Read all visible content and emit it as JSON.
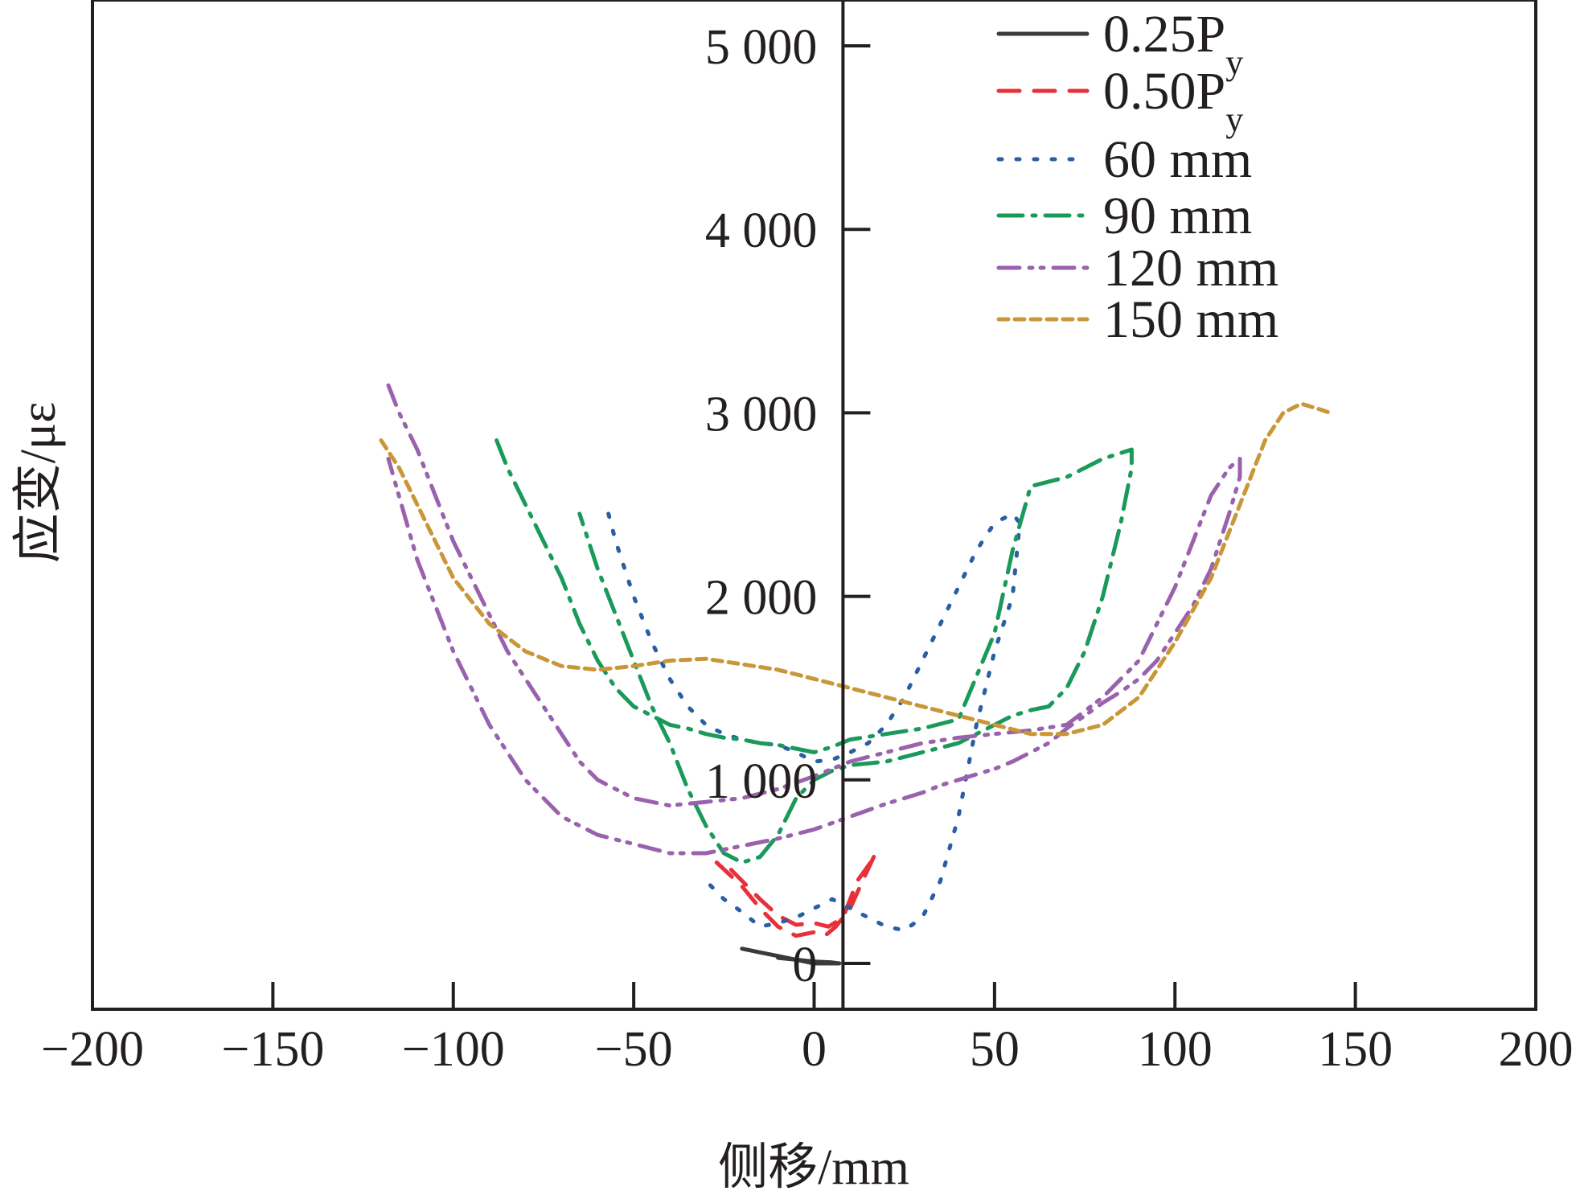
{
  "chart_data": {
    "type": "line",
    "title": "",
    "xlabel": "侧移/mm",
    "ylabel": "应变/με",
    "xlim": [
      -200,
      200
    ],
    "ylim": [
      -250,
      5250
    ],
    "x_ticks": [
      -200,
      -150,
      -100,
      -50,
      0,
      50,
      100,
      150,
      200
    ],
    "x_tick_labels": [
      "−200",
      "−150",
      "−100",
      "−50",
      "0",
      "50",
      "100",
      "150",
      "200"
    ],
    "y_ticks": [
      0,
      1000,
      2000,
      3000,
      4000,
      5000
    ],
    "y_tick_labels": [
      "0",
      "1 000",
      "2 000",
      "3 000",
      "4 000",
      "5 000"
    ],
    "y_axis_at_x": 8,
    "grid": false,
    "legend_position": "top-right",
    "series": [
      {
        "name": "0.25Py",
        "legend_main": "0.25P",
        "legend_sub": "y",
        "color": "#3a3a3a",
        "dash": "",
        "x": [
          -20,
          -15,
          -10,
          -5,
          0,
          5,
          7,
          5,
          0,
          -5,
          -10
        ],
        "y": [
          80,
          60,
          40,
          20,
          0,
          0,
          0,
          5,
          10,
          20,
          30
        ]
      },
      {
        "name": "0.50Py",
        "legend_main": "0.50P",
        "legend_sub": "y",
        "color": "#e8303a",
        "dash": "26,18",
        "x": [
          -27,
          -20,
          -15,
          -10,
          -5,
          0,
          3,
          6,
          10,
          13,
          17,
          16,
          12,
          10,
          8,
          4,
          0,
          -5,
          -10,
          -15,
          -20,
          -25
        ],
        "y": [
          550,
          420,
          300,
          200,
          150,
          170,
          150,
          200,
          300,
          430,
          600,
          560,
          450,
          350,
          250,
          200,
          220,
          210,
          260,
          350,
          450,
          550
        ]
      },
      {
        "name": "60 mm",
        "color": "#2a5ea3",
        "dash": "4,18",
        "x": [
          -57,
          -55,
          -50,
          -45,
          -40,
          -35,
          -30,
          -25,
          -20,
          -15,
          -10,
          -5,
          0,
          5,
          10,
          15,
          20,
          25,
          30,
          35,
          40,
          45,
          50,
          55,
          57,
          55,
          50,
          45,
          40,
          35,
          30,
          25,
          20,
          15,
          10,
          5,
          0,
          -5,
          -10,
          -15,
          -20,
          -25,
          -30
        ],
        "y": [
          2450,
          2300,
          2000,
          1750,
          1550,
          1400,
          1300,
          1250,
          1220,
          1200,
          1190,
          1150,
          1100,
          1110,
          1150,
          1200,
          1300,
          1450,
          1650,
          1850,
          2050,
          2250,
          2400,
          2450,
          2400,
          2000,
          1700,
          1300,
          800,
          450,
          250,
          180,
          200,
          250,
          300,
          350,
          300,
          250,
          220,
          200,
          280,
          350,
          450
        ]
      },
      {
        "name": "90 mm",
        "color": "#1a9a5a",
        "dash": "30,12,4,12",
        "x": [
          -88,
          -85,
          -80,
          -75,
          -70,
          -65,
          -60,
          -55,
          -50,
          -45,
          -40,
          -35,
          -30,
          -25,
          -20,
          -15,
          -10,
          -5,
          0,
          5,
          10,
          20,
          30,
          40,
          50,
          55,
          60,
          70,
          80,
          88,
          88,
          85,
          80,
          75,
          70,
          65,
          60,
          55,
          50,
          40,
          30,
          20,
          10,
          5,
          0,
          -5,
          -10,
          -15,
          -20,
          -25,
          -30,
          -35,
          -40,
          -45,
          -50,
          -55,
          -60,
          -65
        ],
        "y": [
          2850,
          2700,
          2500,
          2300,
          2100,
          1850,
          1650,
          1500,
          1400,
          1350,
          1300,
          1280,
          1250,
          1230,
          1220,
          1200,
          1190,
          1170,
          1150,
          1180,
          1220,
          1250,
          1280,
          1330,
          1800,
          2250,
          2600,
          2650,
          2750,
          2800,
          2700,
          2400,
          2000,
          1700,
          1500,
          1400,
          1380,
          1350,
          1300,
          1200,
          1150,
          1100,
          1080,
          1050,
          1000,
          900,
          700,
          580,
          550,
          600,
          750,
          950,
          1200,
          1400,
          1650,
          1900,
          2150,
          2450
        ]
      },
      {
        "name": "120 mm",
        "color": "#9a62ad",
        "dash": "26,12,4,10,4,12",
        "x": [
          -118,
          -115,
          -110,
          -105,
          -100,
          -95,
          -90,
          -85,
          -80,
          -75,
          -70,
          -65,
          -60,
          -55,
          -50,
          -40,
          -30,
          -20,
          -10,
          0,
          10,
          20,
          30,
          40,
          50,
          60,
          70,
          80,
          90,
          95,
          100,
          105,
          110,
          115,
          118,
          118,
          115,
          110,
          105,
          100,
          95,
          90,
          85,
          80,
          75,
          70,
          65,
          60,
          55,
          50,
          45,
          40,
          35,
          30,
          25,
          20,
          10,
          0,
          -10,
          -20,
          -30,
          -40,
          -50,
          -60,
          -70,
          -80,
          -90,
          -100,
          -110,
          -118
        ],
        "y": [
          3150,
          3000,
          2800,
          2550,
          2300,
          2100,
          1900,
          1700,
          1550,
          1400,
          1250,
          1100,
          1000,
          950,
          900,
          860,
          880,
          900,
          950,
          1020,
          1100,
          1150,
          1200,
          1230,
          1250,
          1270,
          1300,
          1450,
          1650,
          1850,
          2050,
          2300,
          2550,
          2700,
          2750,
          2650,
          2450,
          2150,
          1950,
          1800,
          1650,
          1550,
          1480,
          1420,
          1350,
          1280,
          1200,
          1150,
          1100,
          1060,
          1030,
          1000,
          970,
          930,
          900,
          870,
          800,
          730,
          680,
          640,
          600,
          600,
          650,
          700,
          800,
          1000,
          1300,
          1700,
          2200,
          2750
        ]
      },
      {
        "name": "150 mm",
        "color": "#c99638",
        "dash": "12,8",
        "x": [
          -120,
          -115,
          -110,
          -105,
          -100,
          -90,
          -80,
          -70,
          -60,
          -50,
          -40,
          -30,
          -20,
          -10,
          0,
          10,
          20,
          30,
          40,
          50,
          60,
          70,
          80,
          90,
          100,
          110,
          115,
          120,
          125,
          130,
          135,
          140,
          143
        ],
        "y": [
          2850,
          2700,
          2500,
          2300,
          2100,
          1850,
          1700,
          1620,
          1600,
          1620,
          1650,
          1660,
          1630,
          1600,
          1550,
          1500,
          1450,
          1400,
          1350,
          1300,
          1250,
          1250,
          1300,
          1450,
          1750,
          2100,
          2350,
          2600,
          2850,
          3000,
          3050,
          3020,
          3000
        ]
      }
    ]
  }
}
